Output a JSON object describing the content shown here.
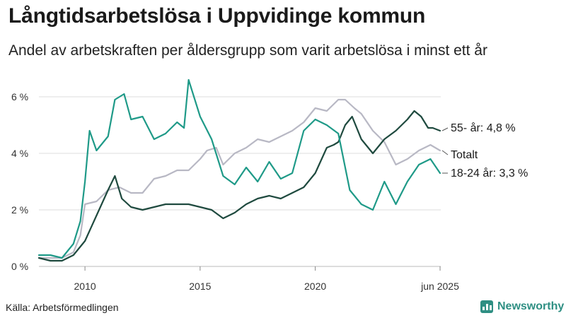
{
  "header": {
    "title": "Långtidsarbetslösa i Uppvidinge kommun",
    "subtitle": "Andel av arbetskraften per åldersgrupp som varit arbetslösa i minst ett år"
  },
  "footer": {
    "source": "Källa: Arbetsförmedlingen",
    "brand": "Newsworthy"
  },
  "colors": {
    "s55": "#1f4a3f",
    "s1824": "#1f9a88",
    "total": "#b8b8c4",
    "grid": "#dddddd",
    "axis": "#333333"
  },
  "chart_data": {
    "type": "line",
    "title": "Långtidsarbetslösa i Uppvidinge kommun",
    "xlabel": "",
    "ylabel": "",
    "xlim": [
      2008.0,
      2025.45
    ],
    "ylim": [
      0,
      6.5
    ],
    "y_ticks": [
      0,
      2,
      4,
      6
    ],
    "y_tick_labels": [
      "0 %",
      "2 %",
      "4 %",
      "6 %"
    ],
    "x_ticks": [
      2010,
      2015,
      2020,
      2025.42
    ],
    "x_tick_labels": [
      "2010",
      "2015",
      "2020",
      "jun 2025"
    ],
    "series": [
      {
        "name": "Totalt",
        "label": "Totalt",
        "color": "#b8b8c4",
        "x": [
          2008.0,
          2008.5,
          2009.0,
          2009.5,
          2009.8,
          2010.0,
          2010.5,
          2011.0,
          2011.5,
          2012.0,
          2012.5,
          2013.0,
          2013.5,
          2014.0,
          2014.5,
          2015.0,
          2015.3,
          2015.7,
          2016.0,
          2016.5,
          2017.0,
          2017.5,
          2018.0,
          2018.5,
          2019.0,
          2019.5,
          2020.0,
          2020.5,
          2021.0,
          2021.3,
          2021.7,
          2022.0,
          2022.5,
          2023.0,
          2023.5,
          2024.0,
          2024.5,
          2025.0,
          2025.42
        ],
        "values": [
          0.3,
          0.3,
          0.3,
          0.5,
          1.1,
          2.2,
          2.3,
          2.7,
          2.8,
          2.6,
          2.6,
          3.1,
          3.2,
          3.4,
          3.4,
          3.8,
          4.1,
          4.2,
          3.6,
          4.0,
          4.2,
          4.5,
          4.4,
          4.6,
          4.8,
          5.1,
          5.6,
          5.5,
          5.9,
          5.9,
          5.6,
          5.4,
          4.8,
          4.4,
          3.6,
          3.8,
          4.1,
          4.3,
          4.1
        ]
      },
      {
        "name": "55- år",
        "label": "55- år: 4,8 %",
        "color": "#1f4a3f",
        "x": [
          2008.0,
          2008.5,
          2009.0,
          2009.5,
          2010.0,
          2010.5,
          2011.0,
          2011.3,
          2011.6,
          2012.0,
          2012.5,
          2013.0,
          2013.5,
          2014.0,
          2014.5,
          2015.0,
          2015.5,
          2016.0,
          2016.5,
          2017.0,
          2017.5,
          2018.0,
          2018.5,
          2019.0,
          2019.5,
          2020.0,
          2020.5,
          2020.8,
          2021.0,
          2021.3,
          2021.6,
          2022.0,
          2022.5,
          2023.0,
          2023.5,
          2024.0,
          2024.3,
          2024.6,
          2024.9,
          2025.1,
          2025.42
        ],
        "values": [
          0.3,
          0.2,
          0.2,
          0.4,
          0.9,
          1.8,
          2.7,
          3.2,
          2.4,
          2.1,
          2.0,
          2.1,
          2.2,
          2.2,
          2.2,
          2.1,
          2.0,
          1.7,
          1.9,
          2.2,
          2.4,
          2.5,
          2.4,
          2.6,
          2.8,
          3.3,
          4.2,
          4.3,
          4.4,
          5.0,
          5.3,
          4.5,
          4.0,
          4.5,
          4.8,
          5.2,
          5.5,
          5.3,
          4.9,
          4.9,
          4.8
        ]
      },
      {
        "name": "18-24 år",
        "label": "18-24 år: 3,3 %",
        "color": "#1f9a88",
        "x": [
          2008.0,
          2008.5,
          2009.0,
          2009.5,
          2009.8,
          2010.0,
          2010.2,
          2010.5,
          2011.0,
          2011.3,
          2011.7,
          2012.0,
          2012.5,
          2013.0,
          2013.5,
          2014.0,
          2014.3,
          2014.5,
          2015.0,
          2015.5,
          2016.0,
          2016.5,
          2017.0,
          2017.5,
          2018.0,
          2018.5,
          2019.0,
          2019.5,
          2020.0,
          2020.5,
          2021.0,
          2021.5,
          2022.0,
          2022.5,
          2023.0,
          2023.5,
          2024.0,
          2024.5,
          2025.0,
          2025.42
        ],
        "values": [
          0.4,
          0.4,
          0.3,
          0.8,
          1.6,
          3.0,
          4.8,
          4.1,
          4.6,
          5.9,
          6.1,
          5.2,
          5.3,
          4.5,
          4.7,
          5.1,
          4.9,
          6.6,
          5.3,
          4.5,
          3.2,
          2.9,
          3.5,
          3.0,
          3.7,
          3.1,
          3.3,
          4.8,
          5.2,
          5.0,
          4.7,
          2.7,
          2.2,
          2.0,
          3.0,
          2.2,
          3.0,
          3.6,
          3.8,
          3.3
        ]
      }
    ]
  }
}
